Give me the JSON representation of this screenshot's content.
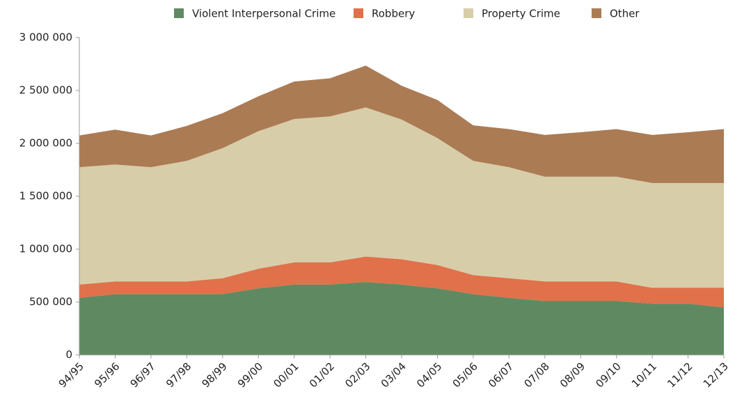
{
  "chart_data": {
    "type": "area",
    "categories": [
      "94/95",
      "95/96",
      "96/97",
      "97/98",
      "98/99",
      "99/00",
      "00/01",
      "01/02",
      "02/03",
      "03/04",
      "04/05",
      "05/06",
      "06/07",
      "07/08",
      "08/09",
      "09/10",
      "10/11",
      "11/12",
      "12/13"
    ],
    "stacked": true,
    "series": [
      {
        "name": "Violent Interpersonal Crime",
        "color": "#5f8a61",
        "values": [
          540000,
          575000,
          575000,
          575000,
          575000,
          630000,
          665000,
          665000,
          690000,
          665000,
          630000,
          575000,
          540000,
          510000,
          510000,
          510000,
          485000,
          485000,
          450000
        ]
      },
      {
        "name": "Robbery",
        "color": "#e0714a",
        "values": [
          125000,
          120000,
          120000,
          120000,
          150000,
          185000,
          210000,
          210000,
          240000,
          240000,
          220000,
          180000,
          185000,
          185000,
          185000,
          185000,
          150000,
          150000,
          185000
        ]
      },
      {
        "name": "Property Crime",
        "color": "#d8cda9",
        "values": [
          1110000,
          1105000,
          1080000,
          1140000,
          1230000,
          1300000,
          1355000,
          1380000,
          1410000,
          1320000,
          1200000,
          1080000,
          1050000,
          990000,
          990000,
          990000,
          990000,
          990000,
          990000
        ]
      },
      {
        "name": "Other",
        "color": "#ab7b54",
        "values": [
          300000,
          330000,
          300000,
          330000,
          330000,
          330000,
          355000,
          360000,
          395000,
          320000,
          360000,
          335000,
          360000,
          395000,
          420000,
          450000,
          455000,
          480000,
          510000
        ]
      }
    ],
    "ylim": [
      0,
      3000000
    ],
    "yticks": [
      0,
      {
        "value": 500000,
        "label": "500 000"
      },
      {
        "value": 1000000,
        "label": "1 000 000"
      },
      {
        "value": 1500000,
        "label": "1 500 000"
      },
      {
        "value": 2000000,
        "label": "2 000 000"
      },
      {
        "value": 2500000,
        "label": "2 500 000"
      },
      {
        "value": 3000000,
        "label": "3 000 000"
      }
    ],
    "legend": "top"
  }
}
